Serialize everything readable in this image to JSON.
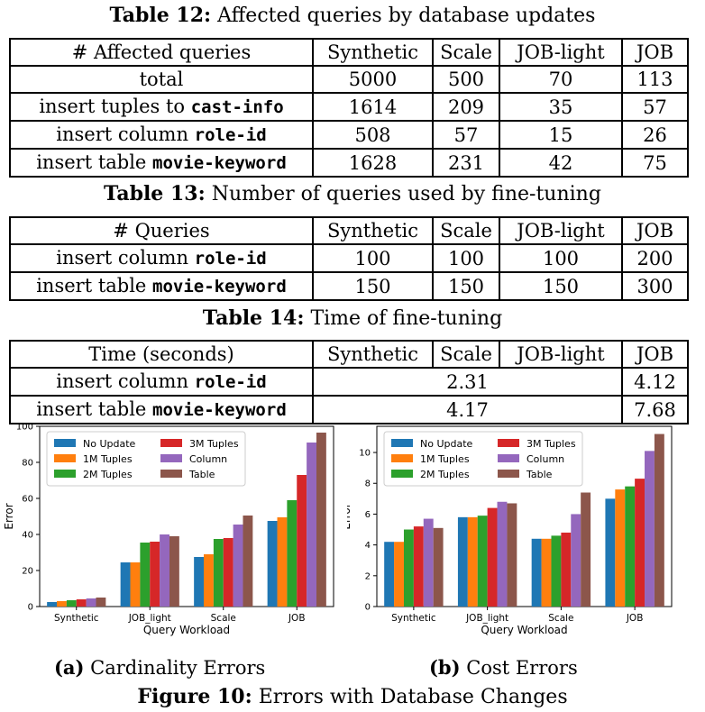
{
  "table12": {
    "label": "Table 12:",
    "title": "Affected queries by database updates",
    "headers": [
      "# Affected queries",
      "Synthetic",
      "Scale",
      "JOB-light",
      "JOB"
    ],
    "rows": [
      {
        "pre": "total",
        "code": "",
        "vals": [
          "5000",
          "500",
          "70",
          "113"
        ]
      },
      {
        "pre": "insert tuples to ",
        "code": "cast-info",
        "vals": [
          "1614",
          "209",
          "35",
          "57"
        ]
      },
      {
        "pre": "insert column ",
        "code": "role-id",
        "vals": [
          "508",
          "57",
          "15",
          "26"
        ]
      },
      {
        "pre": "insert table ",
        "code": "movie-keyword",
        "vals": [
          "1628",
          "231",
          "42",
          "75"
        ]
      }
    ]
  },
  "table13": {
    "label": "Table 13:",
    "title": "Number of queries used by fine-tuning",
    "headers": [
      "# Queries",
      "Synthetic",
      "Scale",
      "JOB-light",
      "JOB"
    ],
    "rows": [
      {
        "pre": "insert column ",
        "code": "role-id",
        "vals": [
          "100",
          "100",
          "100",
          "200"
        ]
      },
      {
        "pre": "insert table ",
        "code": "movie-keyword",
        "vals": [
          "150",
          "150",
          "150",
          "300"
        ]
      }
    ]
  },
  "table14": {
    "label": "Table 14:",
    "title": "Time of fine-tuning",
    "headers": [
      "Time (seconds)",
      "Synthetic",
      "Scale",
      "JOB-light",
      "JOB"
    ],
    "rows": [
      {
        "pre": "insert column ",
        "code": "role-id",
        "merged": "2.31",
        "job": "4.12"
      },
      {
        "pre": "insert table ",
        "code": "movie-keyword",
        "merged": "4.17",
        "job": "7.68"
      }
    ]
  },
  "chart_data": [
    {
      "type": "bar",
      "categories": [
        "Synthetic",
        "JOB_light",
        "Scale",
        "JOB"
      ],
      "xlabel": "Query Workload",
      "ylabel": "Error",
      "ylim": [
        0,
        100
      ],
      "yticks": [
        0,
        20,
        40,
        60,
        80,
        100
      ],
      "legend": "top-left",
      "series": [
        {
          "name": "No Update",
          "color": "#1f77b4",
          "values": [
            2.5,
            24.5,
            27.5,
            47.5
          ]
        },
        {
          "name": "1M Tuples",
          "color": "#ff7f0e",
          "values": [
            3,
            24.5,
            29,
            49.5
          ]
        },
        {
          "name": "2M Tuples",
          "color": "#2ca02c",
          "values": [
            3.5,
            35.5,
            37.5,
            59
          ]
        },
        {
          "name": "3M Tuples",
          "color": "#d62728",
          "values": [
            4,
            36,
            38,
            73
          ]
        },
        {
          "name": "Column",
          "color": "#9467bd",
          "values": [
            4.5,
            40,
            45.5,
            91
          ]
        },
        {
          "name": "Table",
          "color": "#8c564b",
          "values": [
            5,
            39,
            50.5,
            96.5
          ]
        }
      ]
    },
    {
      "type": "bar",
      "categories": [
        "Synthetic",
        "JOB_light",
        "Scale",
        "JOB"
      ],
      "xlabel": "Query Workload",
      "ylabel": "Error",
      "ylim": [
        0,
        11.7
      ],
      "yticks": [
        0,
        2,
        4,
        6,
        8,
        10
      ],
      "legend": "top-left",
      "series": [
        {
          "name": "No Update",
          "color": "#1f77b4",
          "values": [
            4.2,
            5.8,
            4.4,
            7.0
          ]
        },
        {
          "name": "1M Tuples",
          "color": "#ff7f0e",
          "values": [
            4.2,
            5.8,
            4.4,
            7.6
          ]
        },
        {
          "name": "2M Tuples",
          "color": "#2ca02c",
          "values": [
            5.0,
            5.9,
            4.6,
            7.8
          ]
        },
        {
          "name": "3M Tuples",
          "color": "#d62728",
          "values": [
            5.2,
            6.4,
            4.8,
            8.3
          ]
        },
        {
          "name": "Column",
          "color": "#9467bd",
          "values": [
            5.7,
            6.8,
            6.0,
            10.1
          ]
        },
        {
          "name": "Table",
          "color": "#8c564b",
          "values": [
            5.1,
            6.7,
            7.4,
            11.2
          ]
        }
      ]
    }
  ],
  "subcaption_a": {
    "label": "(a)",
    "text": "Cardinality Errors"
  },
  "subcaption_b": {
    "label": "(b)",
    "text": "Cost Errors"
  },
  "figure": {
    "label": "Figure 10:",
    "text": "Errors with Database Changes"
  }
}
